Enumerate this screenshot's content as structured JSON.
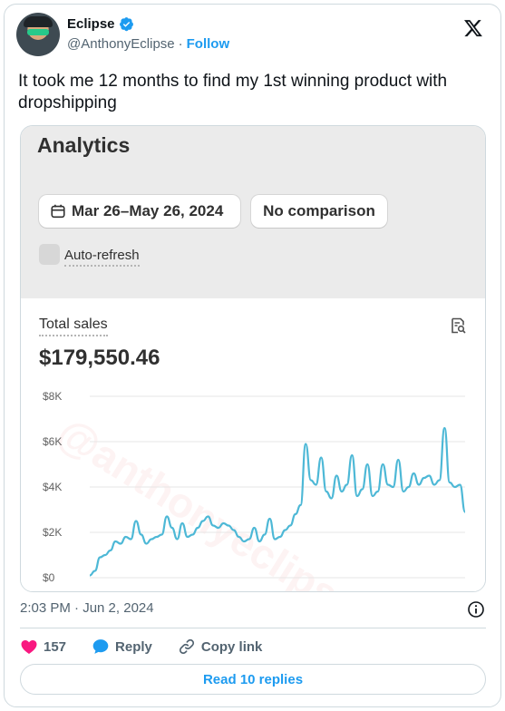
{
  "author": {
    "name": "Eclipse",
    "handle": "@AnthonyEclipse",
    "separator": "·",
    "follow_label": "Follow"
  },
  "tweet": {
    "text": "It took me 12 months to find my 1st winning product with dropshipping",
    "timestamp": "2:03 PM · Jun 2, 2024"
  },
  "screenshot": {
    "title": "Analytics",
    "date_range": "Mar 26–May 26, 2024",
    "comparison": "No comparison",
    "auto_refresh_label": "Auto-refresh",
    "auto_refresh_checked": false,
    "metric_label": "Total sales",
    "metric_value": "$179,550.46",
    "watermark": "@anthonyeclipse"
  },
  "chart_data": {
    "type": "line",
    "title": "",
    "xlabel": "",
    "ylabel": "",
    "y_ticks": [
      "$0",
      "$2K",
      "$4K",
      "$6K",
      "$8K"
    ],
    "ylim": [
      0,
      8000
    ],
    "grid": true,
    "color": "#4db8d6",
    "series": [
      {
        "values": [
          100,
          300,
          900,
          1000,
          1200,
          1600,
          1500,
          1800,
          1700,
          2500,
          1900,
          1500,
          1700,
          1800,
          1900,
          2700,
          2200,
          1700,
          2400,
          1800,
          1900,
          2200,
          2500,
          2700,
          2300,
          2200,
          2400,
          2300,
          2100,
          1800,
          1600,
          1700,
          2200,
          1600,
          1900,
          2600,
          1700,
          1800,
          2100,
          2300,
          2800,
          3200,
          5900,
          4300,
          4100,
          5300,
          3800,
          3500,
          4500,
          3800,
          4100,
          5400,
          3600,
          3900,
          5000,
          3600,
          3800,
          5000,
          4100,
          4000,
          5200,
          3800,
          4000,
          4600,
          4100,
          4400,
          4500,
          4100,
          4300,
          6600,
          4200,
          4000,
          4100,
          2900
        ]
      }
    ]
  },
  "actions": {
    "like_count": "157",
    "reply_label": "Reply",
    "copy_label": "Copy link",
    "read_replies_label": "Read 10 replies"
  },
  "colors": {
    "accent": "#1d9bf0",
    "like": "#f91880",
    "chart_line": "#4db8d6"
  },
  "icons": {
    "verified": "verified-badge-icon",
    "x_logo": "x-logo-icon",
    "calendar": "calendar-icon",
    "report": "report-search-icon",
    "info": "info-icon",
    "like": "heart-icon",
    "reply": "speech-bubble-icon",
    "copy": "link-icon"
  }
}
